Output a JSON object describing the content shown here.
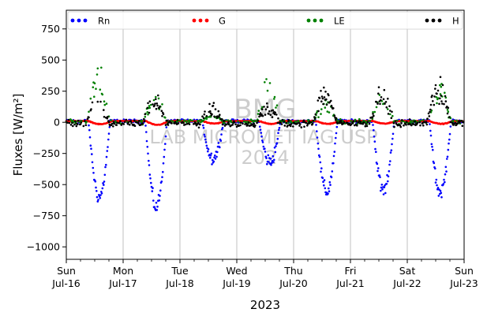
{
  "chart_data": {
    "type": "scatter",
    "title": "",
    "xlabel": "2023",
    "ylabel": "Fluxes [W/m²]",
    "ylim": [
      -1100,
      900
    ],
    "xlim": [
      "2023-07-16",
      "2023-07-23"
    ],
    "yticks": [
      750,
      500,
      250,
      0,
      -250,
      -500,
      -750,
      -1000
    ],
    "ytick_labels": [
      "750",
      "500",
      "250",
      "0",
      "−250",
      "−500",
      "−750",
      "−1000"
    ],
    "xticks": [
      {
        "date": "2023-07-16",
        "day": "Sun",
        "label": "Jul-16"
      },
      {
        "date": "2023-07-17",
        "day": "Mon",
        "label": "Jul-17"
      },
      {
        "date": "2023-07-18",
        "day": "Tue",
        "label": "Jul-18"
      },
      {
        "date": "2023-07-19",
        "day": "Wed",
        "label": "Jul-19"
      },
      {
        "date": "2023-07-20",
        "day": "Thu",
        "label": "Jul-20"
      },
      {
        "date": "2023-07-21",
        "day": "Fri",
        "label": "Jul-21"
      },
      {
        "date": "2023-07-22",
        "day": "Sat",
        "label": "Jul-22"
      },
      {
        "date": "2023-07-23",
        "day": "Sun",
        "label": "Jul-23"
      }
    ],
    "grid": "vertical",
    "legend_position": "top",
    "watermark": [
      "BMG",
      "LAB MICROMET IAG USP",
      "2024"
    ],
    "series": [
      {
        "name": "Rn",
        "color": "#0000ff",
        "daily_min": [
          -600,
          -680,
          -290,
          -320,
          -560,
          -550,
          -560
        ],
        "night_value": 10
      },
      {
        "name": "G",
        "color": "#ff0000",
        "daily_min": [
          -15,
          -20,
          -10,
          -12,
          -12,
          -10,
          -12
        ],
        "night_value": 10
      },
      {
        "name": "LE",
        "color": "#008000",
        "daily_max": [
          470,
          255,
          60,
          350,
          170,
          220,
          310
        ],
        "night_value": 5
      },
      {
        "name": "H",
        "color": "#000000",
        "daily_max": [
          180,
          240,
          150,
          140,
          290,
          280,
          350
        ],
        "night_value": -10
      }
    ]
  }
}
